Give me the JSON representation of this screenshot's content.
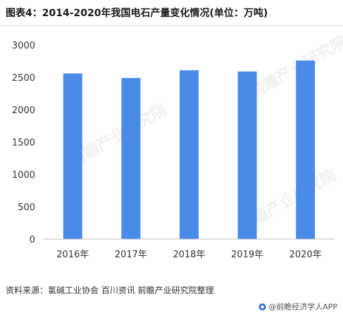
{
  "title": "图表4：2014-2020年我国电石产量变化情况(单位：万吨)",
  "source": "资料来源：氯碱工业协会 百川资讯 前瞻产业研究院整理",
  "brand": "@前瞻经济学人APP",
  "watermark_text": "前瞻产业研究院",
  "colors": {
    "bar": "#4a8ae8",
    "axis": "#bfbfbf",
    "text": "#333333"
  },
  "chart_data": {
    "type": "bar",
    "title": "图表4：2014-2020年我国电石产量变化情况(单位：万吨)",
    "categories": [
      "2016年",
      "2017年",
      "2018年",
      "2019年",
      "2020年"
    ],
    "values": [
      2560,
      2490,
      2610,
      2590,
      2760
    ],
    "ylim": [
      0,
      3000
    ],
    "yticks": [
      0,
      500,
      1000,
      1500,
      2000,
      2500,
      3000
    ],
    "ytick_labels": [
      "0",
      "500",
      "1000",
      "1500",
      "2000",
      "2500",
      "3000"
    ],
    "grid": false,
    "xlabel": "",
    "ylabel": ""
  }
}
